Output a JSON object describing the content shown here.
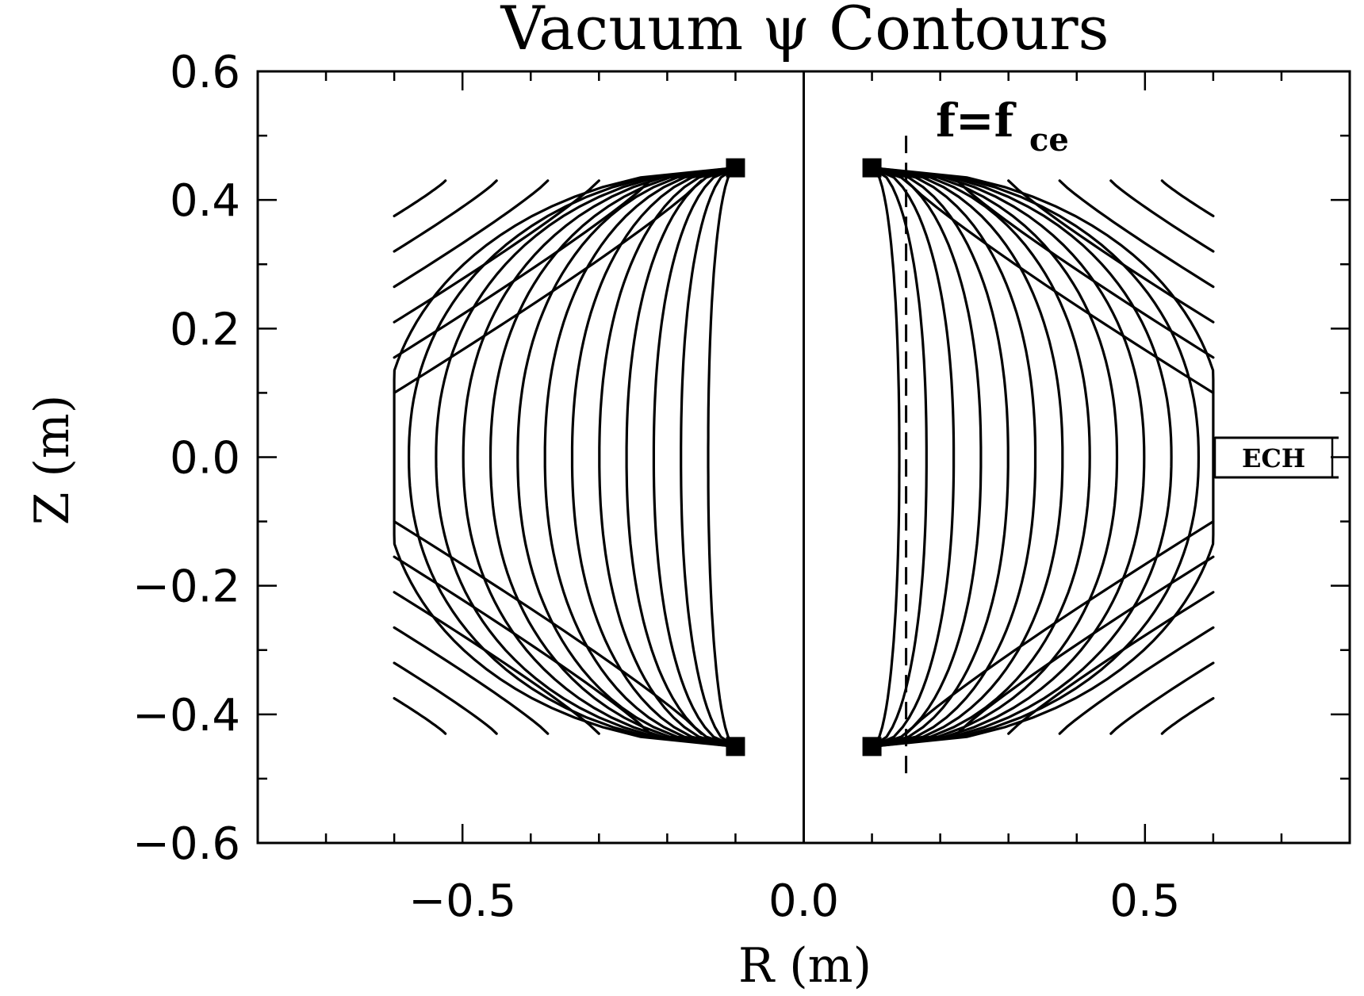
{
  "chart_data": {
    "type": "contour",
    "title": "Vacuum ψ Contours",
    "xlabel": "R (m)",
    "ylabel": "Z (m)",
    "xlim": [
      -0.8,
      0.8
    ],
    "ylim": [
      -0.6,
      0.6
    ],
    "x_ticks": [
      -0.5,
      0.0,
      0.5
    ],
    "x_tick_labels": [
      "−0.5",
      "0.0",
      "0.5"
    ],
    "y_ticks": [
      -0.6,
      -0.4,
      -0.2,
      0.0,
      0.2,
      0.4,
      0.6
    ],
    "y_tick_labels": [
      "−0.6",
      "−0.4",
      "−0.2",
      "0.0",
      "0.2",
      "0.4",
      "0.6"
    ],
    "grid": false,
    "contour_region": {
      "r_inner": 0.1,
      "r_outer": 0.6,
      "z_extent": 0.45
    },
    "num_contours_per_side": 13,
    "center_line_r": 0.0,
    "resonance": {
      "label": "f=f",
      "label_sub": "ce",
      "r": 0.15,
      "z_range": [
        -0.5,
        0.5
      ],
      "style": "dashed"
    },
    "ech_port": {
      "label": "ECH",
      "z": 0.0
    }
  }
}
